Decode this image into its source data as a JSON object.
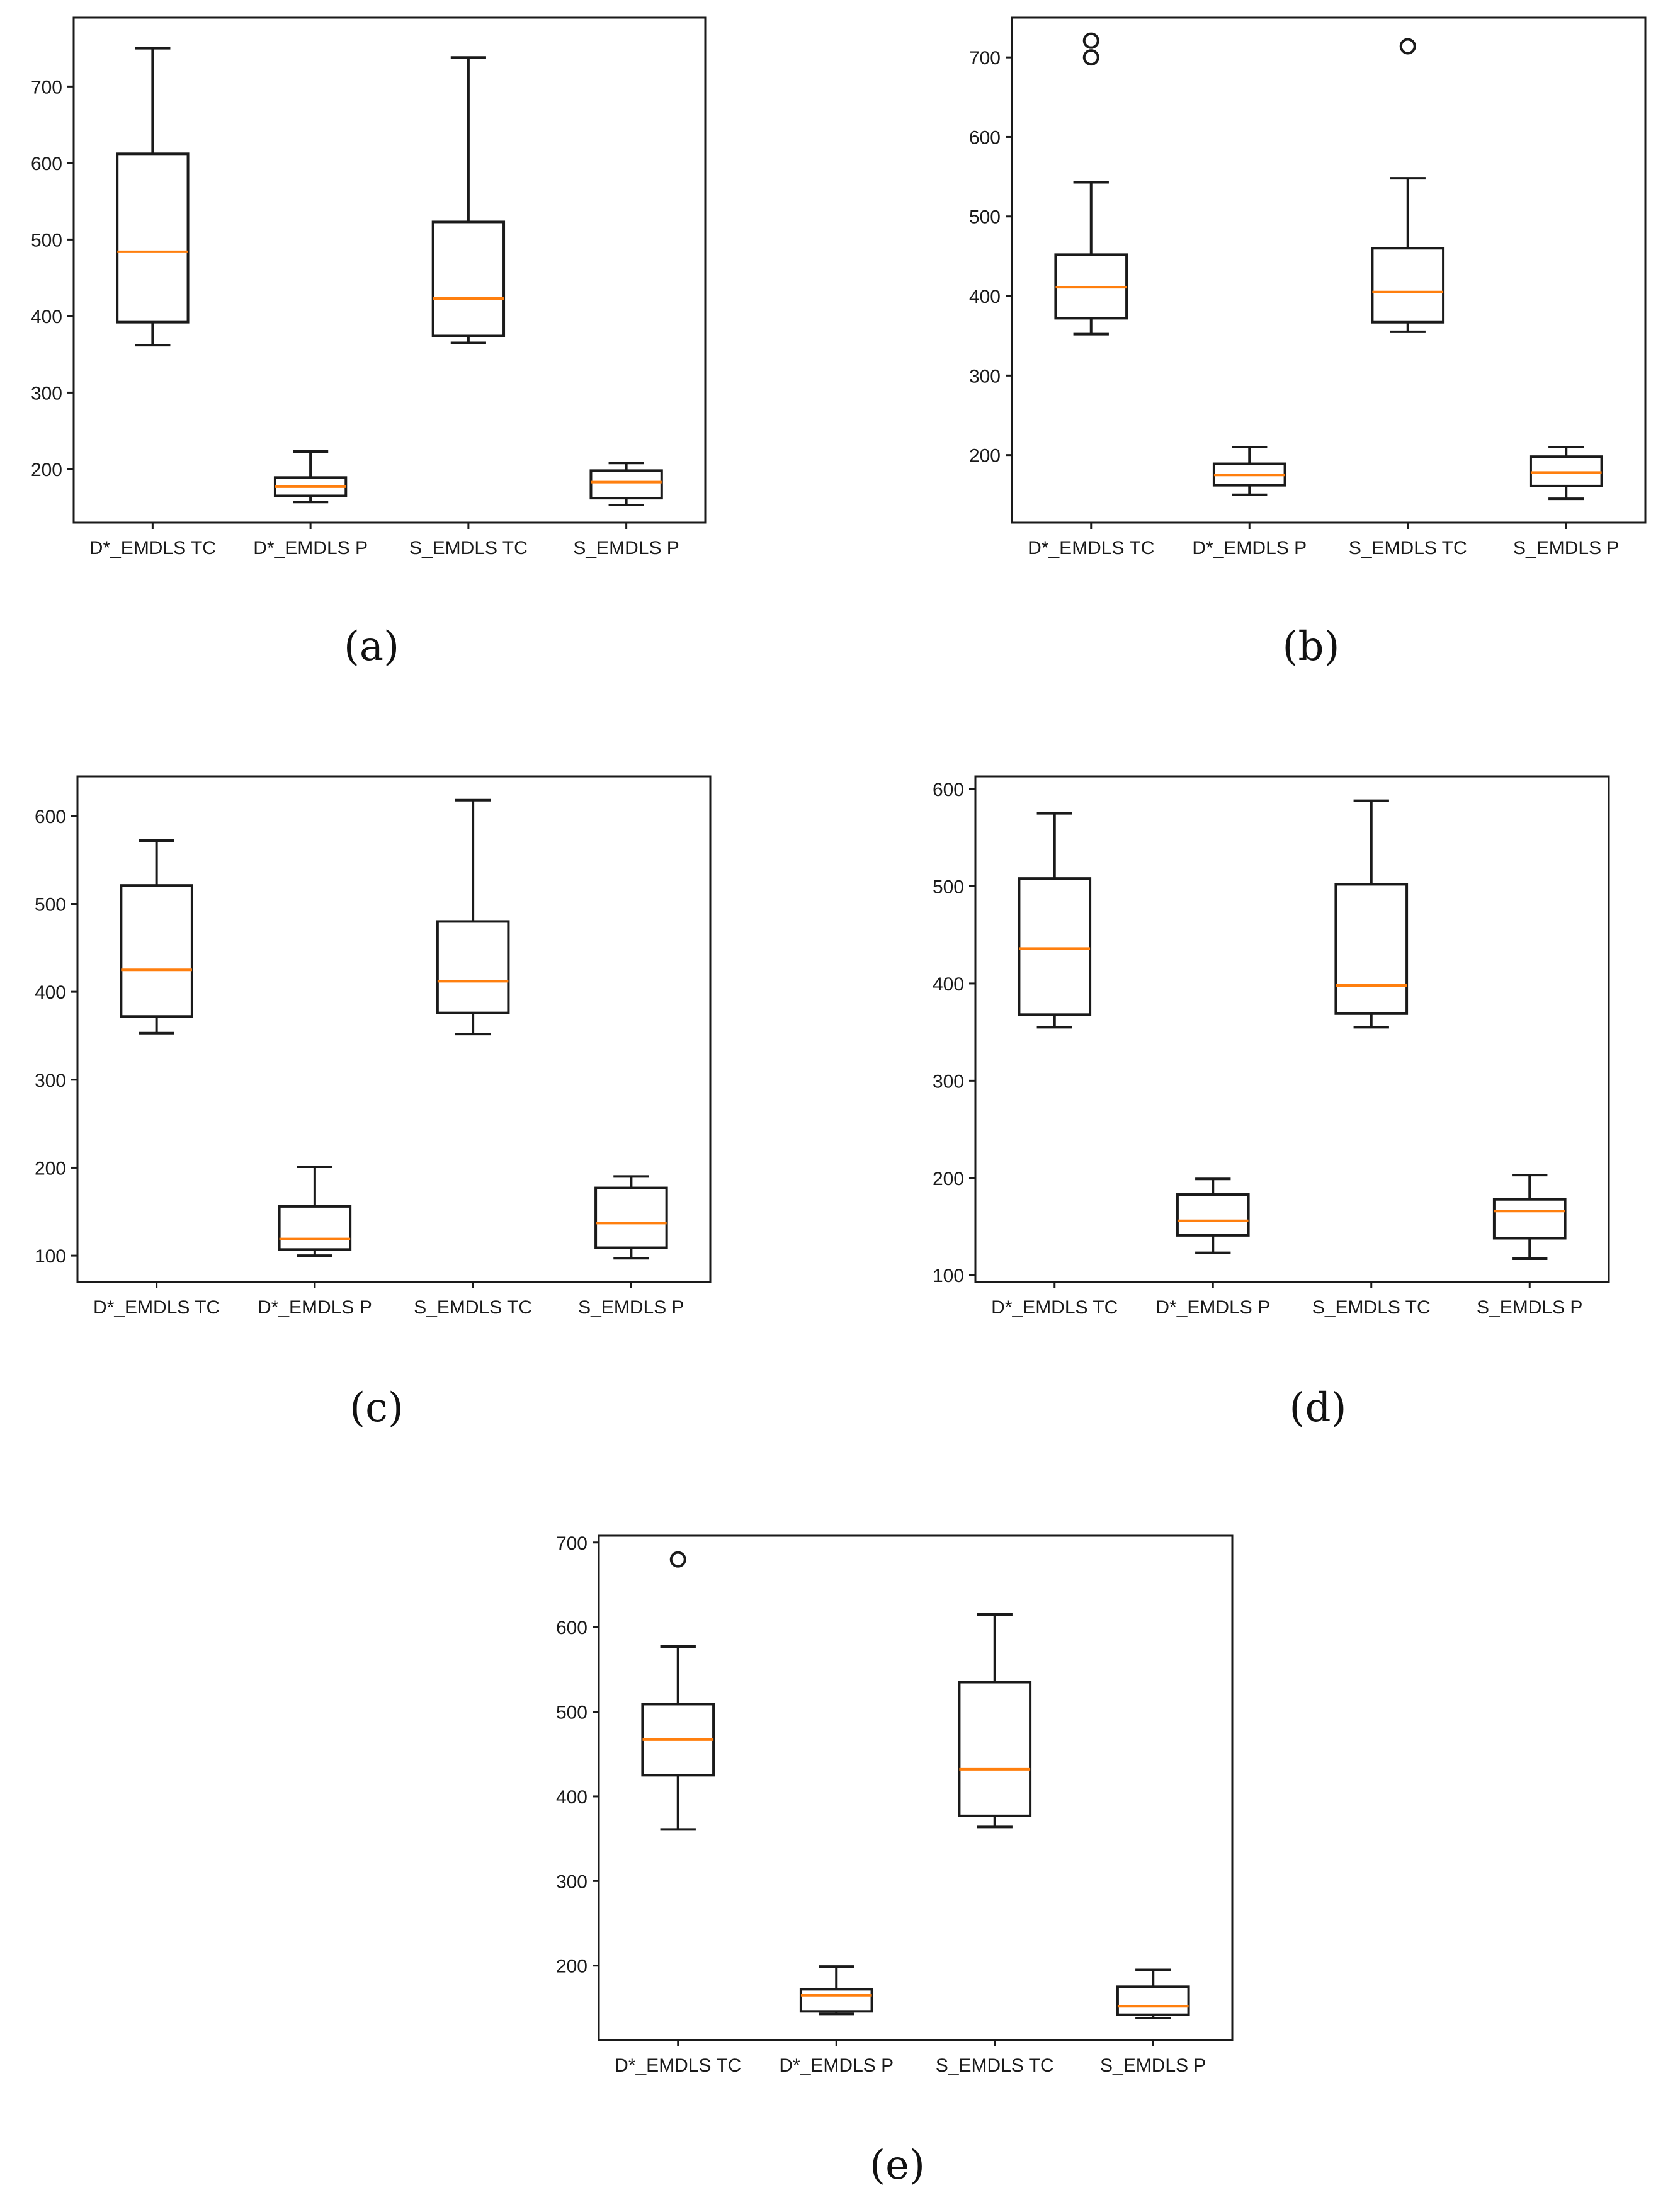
{
  "colors": {
    "median": "#ff7f0e",
    "box": "#1a1a1a"
  },
  "chart_data": [
    {
      "panel": "(a)",
      "type": "box",
      "categories": [
        "D*_EMDLS TC",
        "D*_EMDLS P",
        "S_EMDLS TC",
        "S_EMDLS P"
      ],
      "ylim": [
        130,
        790
      ],
      "yticks": [
        200,
        300,
        400,
        500,
        600,
        700
      ],
      "boxes": [
        {
          "whislo": 362,
          "q1": 392,
          "med": 484,
          "q3": 612,
          "whishi": 750,
          "fliers": []
        },
        {
          "whislo": 157,
          "q1": 165,
          "med": 177,
          "q3": 189,
          "whishi": 223,
          "fliers": []
        },
        {
          "whislo": 365,
          "q1": 374,
          "med": 423,
          "q3": 523,
          "whishi": 738,
          "fliers": []
        },
        {
          "whislo": 153,
          "q1": 162,
          "med": 183,
          "q3": 198,
          "whishi": 208,
          "fliers": []
        }
      ]
    },
    {
      "panel": "(b)",
      "type": "box",
      "categories": [
        "D*_EMDLS TC",
        "D*_EMDLS P",
        "S_EMDLS TC",
        "S_EMDLS P"
      ],
      "ylim": [
        115,
        750
      ],
      "yticks": [
        200,
        300,
        400,
        500,
        600,
        700
      ],
      "boxes": [
        {
          "whislo": 352,
          "q1": 372,
          "med": 411,
          "q3": 452,
          "whishi": 543,
          "fliers": [
            700,
            721
          ]
        },
        {
          "whislo": 150,
          "q1": 162,
          "med": 175,
          "q3": 189,
          "whishi": 210,
          "fliers": []
        },
        {
          "whislo": 355,
          "q1": 367,
          "med": 405,
          "q3": 460,
          "whishi": 548,
          "fliers": [
            714
          ]
        },
        {
          "whislo": 145,
          "q1": 161,
          "med": 178,
          "q3": 198,
          "whishi": 210,
          "fliers": []
        }
      ]
    },
    {
      "panel": "(c)",
      "type": "box",
      "categories": [
        "D*_EMDLS TC",
        "D*_EMDLS P",
        "S_EMDLS TC",
        "S_EMDLS P"
      ],
      "ylim": [
        70,
        645
      ],
      "yticks": [
        100,
        200,
        300,
        400,
        500,
        600
      ],
      "boxes": [
        {
          "whislo": 353,
          "q1": 372,
          "med": 425,
          "q3": 521,
          "whishi": 572,
          "fliers": []
        },
        {
          "whislo": 100,
          "q1": 107,
          "med": 119,
          "q3": 156,
          "whishi": 201,
          "fliers": []
        },
        {
          "whislo": 352,
          "q1": 376,
          "med": 412,
          "q3": 480,
          "whishi": 618,
          "fliers": []
        },
        {
          "whislo": 97,
          "q1": 109,
          "med": 137,
          "q3": 177,
          "whishi": 190,
          "fliers": []
        }
      ]
    },
    {
      "panel": "(d)",
      "type": "box",
      "categories": [
        "D*_EMDLS TC",
        "D*_EMDLS P",
        "S_EMDLS TC",
        "S_EMDLS P"
      ],
      "ylim": [
        93,
        613
      ],
      "yticks": [
        100,
        200,
        300,
        400,
        500,
        600
      ],
      "boxes": [
        {
          "whislo": 355,
          "q1": 368,
          "med": 436,
          "q3": 508,
          "whishi": 575,
          "fliers": []
        },
        {
          "whislo": 123,
          "q1": 141,
          "med": 156,
          "q3": 183,
          "whishi": 199,
          "fliers": []
        },
        {
          "whislo": 355,
          "q1": 369,
          "med": 398,
          "q3": 502,
          "whishi": 588,
          "fliers": []
        },
        {
          "whislo": 117,
          "q1": 138,
          "med": 166,
          "q3": 178,
          "whishi": 203,
          "fliers": []
        }
      ]
    },
    {
      "panel": "(e)",
      "type": "box",
      "categories": [
        "D*_EMDLS TC",
        "D*_EMDLS P",
        "S_EMDLS TC",
        "S_EMDLS P"
      ],
      "ylim": [
        112,
        708
      ],
      "yticks": [
        200,
        300,
        400,
        500,
        600,
        700
      ],
      "boxes": [
        {
          "whislo": 361,
          "q1": 425,
          "med": 467,
          "q3": 509,
          "whishi": 577,
          "fliers": [
            680
          ]
        },
        {
          "whislo": 143,
          "q1": 146,
          "med": 165,
          "q3": 172,
          "whishi": 199,
          "fliers": []
        },
        {
          "whislo": 364,
          "q1": 377,
          "med": 432,
          "q3": 535,
          "whishi": 615,
          "fliers": []
        },
        {
          "whislo": 138,
          "q1": 142,
          "med": 152,
          "q3": 175,
          "whishi": 195,
          "fliers": []
        }
      ]
    }
  ]
}
